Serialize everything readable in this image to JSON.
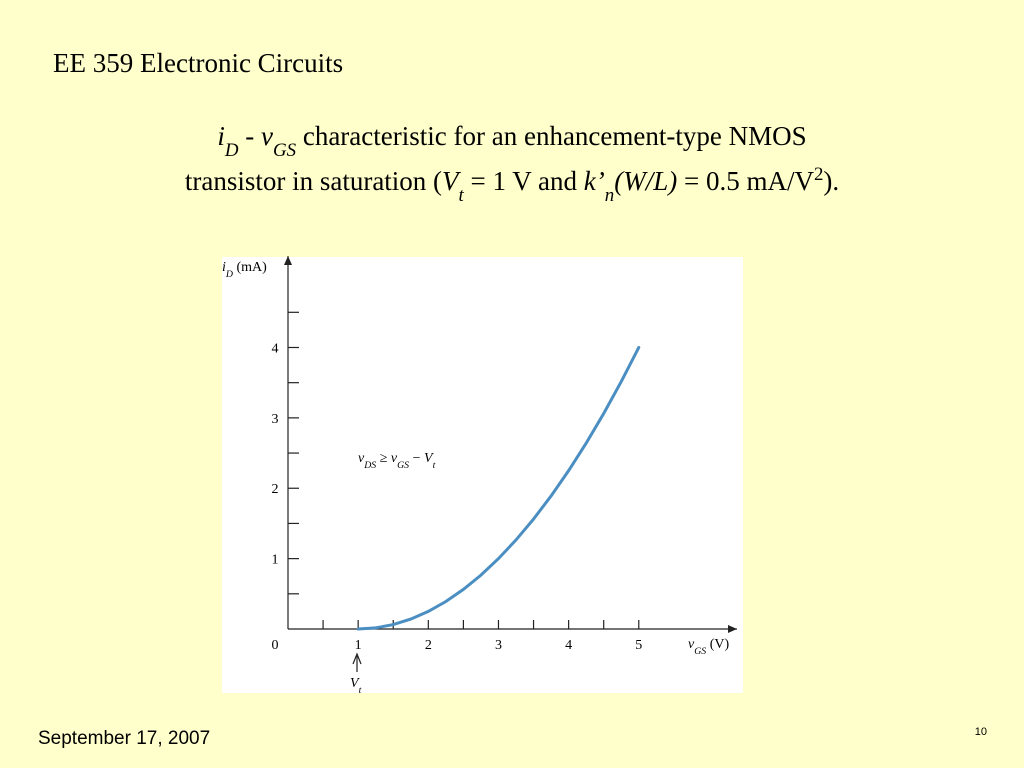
{
  "header": "EE 359 Electronic Circuits",
  "title_line1": [
    "i",
    "D",
    " - ",
    "v",
    "GS",
    " characteristic for an enhancement-type NMOS"
  ],
  "title_line2": [
    "transistor in saturation (",
    "V",
    "t",
    " = 1 V and ",
    "k’",
    "n",
    "(W/L)",
    " = 0.5 mA/V",
    "2",
    ")."
  ],
  "chart_data": {
    "type": "line",
    "ylabel": [
      "i",
      "D",
      " (mA)"
    ],
    "xlabel": [
      "v",
      "GS",
      " (V)"
    ],
    "annotation": [
      "v",
      "DS",
      " ≥ ",
      "v",
      "GS",
      " − ",
      "V",
      "t"
    ],
    "vt_label": [
      "V",
      "t"
    ],
    "x": [
      1,
      1.25,
      1.5,
      1.75,
      2,
      2.25,
      2.5,
      2.75,
      3,
      3.25,
      3.5,
      3.75,
      4,
      4.25,
      4.5,
      4.75,
      5
    ],
    "series": [
      {
        "color": "#4a8ec2",
        "values": [
          0,
          0.015625,
          0.0625,
          0.140625,
          0.25,
          0.390625,
          0.5625,
          0.765625,
          1,
          1.265625,
          1.5625,
          1.890625,
          2.25,
          2.640625,
          3.0625,
          3.515625,
          4
        ]
      }
    ],
    "xlim": [
      0,
      6.4
    ],
    "ylim": [
      0,
      5.3
    ],
    "xticks": [
      0,
      1,
      2,
      3,
      4,
      5
    ],
    "yticks": [
      1,
      2,
      3,
      4
    ],
    "xminorticks": [
      0.5,
      1.5,
      2.5,
      3.5,
      4.5
    ],
    "yminorticks": [
      0.5,
      1.5,
      2.5,
      3.5,
      4.5
    ]
  },
  "footer": {
    "date": "September 17, 2007",
    "page": "10"
  }
}
